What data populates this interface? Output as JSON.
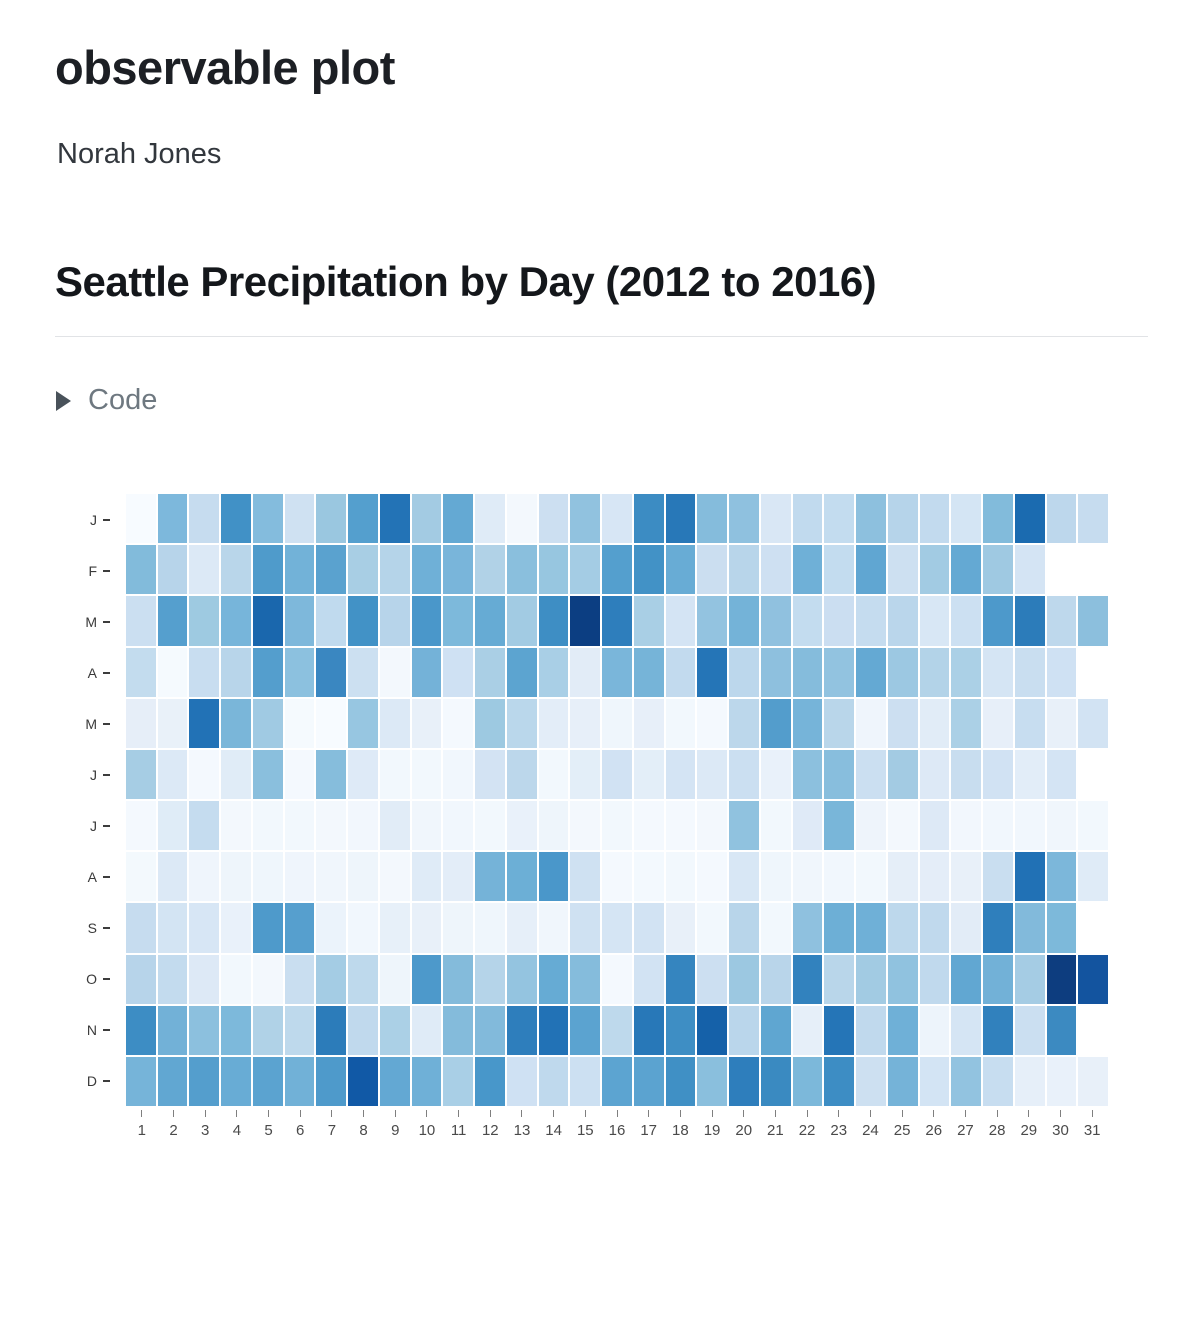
{
  "page": {
    "title": "observable plot",
    "author": "Norah Jones"
  },
  "section": {
    "heading": "Seattle Precipitation by Day (2012 to 2016)"
  },
  "code_toggle": {
    "label": "Code",
    "icon": "triangle-right"
  },
  "chart_data": {
    "type": "heatmap",
    "title": "Seattle Precipitation by Day (2012 to 2016)",
    "x_ticks": [
      1,
      2,
      3,
      4,
      5,
      6,
      7,
      8,
      9,
      10,
      11,
      12,
      13,
      14,
      15,
      16,
      17,
      18,
      19,
      20,
      21,
      22,
      23,
      24,
      25,
      26,
      27,
      28,
      29,
      30,
      31
    ],
    "y_ticks": [
      "J",
      "F",
      "M",
      "A",
      "M",
      "J",
      "J",
      "A",
      "S",
      "O",
      "N",
      "D"
    ],
    "legend_position": "none",
    "grid": false,
    "palette": "Blues sequential (near-white = low, dark navy = high)",
    "rows": [
      {
        "month": "J",
        "cells": [
          "#f7fbff",
          "#7db8dc",
          "#c6dcef",
          "#4191c6",
          "#84bcdd",
          "#cfe1f2",
          "#9ac7e0",
          "#549fce",
          "#2373b6",
          "#a3cbe3",
          "#64a9d3",
          "#dfebf7",
          "#f3f8fd",
          "#ccdff1",
          "#91c2df",
          "#d7e6f5",
          "#3c8cc3",
          "#2878b8",
          "#85bcdc",
          "#8fc1df",
          "#d9e7f5",
          "#c1daee",
          "#c3dcef",
          "#8dc0de",
          "#b6d4ea",
          "#c2daee",
          "#d4e5f4",
          "#82bbdb",
          "#1b6bb0",
          "#bdd7ec",
          "#c6dcef"
        ]
      },
      {
        "month": "F",
        "cells": [
          "#82bbdb",
          "#b7d4ea",
          "#dce9f6",
          "#b9d6ea",
          "#4f9bcb",
          "#72b2d8",
          "#5aa2cf",
          "#a8cee4",
          "#b5d4e9",
          "#6fb0d7",
          "#79b5da",
          "#b1d2e7",
          "#8abfdd",
          "#97c6e0",
          "#a4cce4",
          "#549fce",
          "#4292c6",
          "#68acd5",
          "#cbdef0",
          "#b8d5ea",
          "#cee0f2",
          "#6fb0d7",
          "#c3dcef",
          "#60a6d2",
          "#cde0f1",
          "#a2cbe3",
          "#64a9d3",
          "#9fc9e2",
          "#d4e4f4",
          null,
          null
        ]
      },
      {
        "month": "M",
        "cells": [
          "#cbdff1",
          "#559fce",
          "#9ecae1",
          "#77b5da",
          "#1a67ad",
          "#7eb8db",
          "#c0daee",
          "#4292c6",
          "#b7d4ea",
          "#4a97ca",
          "#7db9db",
          "#66abd4",
          "#a2cbe3",
          "#3e8ec4",
          "#0c3e82",
          "#2e7ebc",
          "#a9cfe5",
          "#d4e4f4",
          "#93c3e0",
          "#74b3d8",
          "#90c1df",
          "#c3dcef",
          "#cbdef1",
          "#c5dcef",
          "#bad6eb",
          "#d8e7f5",
          "#cce0f2",
          "#4d99cb",
          "#2c7cba",
          "#bed8ec",
          "#8cbfdd"
        ]
      },
      {
        "month": "A",
        "cells": [
          "#c3dcee",
          "#f5fafe",
          "#c8ddf0",
          "#b8d5ea",
          "#549ecd",
          "#8cc1df",
          "#3a87c1",
          "#cce0f1",
          "#f3f8fd",
          "#74b2d8",
          "#cfe1f3",
          "#aacfe5",
          "#5ca4d0",
          "#a9cfe6",
          "#e2ecf7",
          "#7ab6da",
          "#76b4d8",
          "#c2daee",
          "#2575b7",
          "#bcd7ec",
          "#8ec0de",
          "#85bcdc",
          "#92c3e0",
          "#64a9d3",
          "#9cc8e2",
          "#b3d3e8",
          "#abd0e6",
          "#d5e5f4",
          "#c9def0",
          "#cfe1f3",
          null
        ]
      },
      {
        "month": "M",
        "cells": [
          "#e6eef8",
          "#e9f1f9",
          "#2272b6",
          "#7ab6d9",
          "#a0cae3",
          "#f5fafe",
          "#f7fbff",
          "#97c6e1",
          "#dce9f6",
          "#e8f0f9",
          "#f4f9fe",
          "#9dc9e1",
          "#bad7eb",
          "#e3edf8",
          "#e7eff9",
          "#eff6fc",
          "#e7eff9",
          "#f2f8fd",
          "#f4f9fe",
          "#bcd7eb",
          "#539dcc",
          "#76b4d9",
          "#b9d6ea",
          "#eff5fc",
          "#ccdff1",
          "#e1ecf7",
          "#abd0e6",
          "#e7eff9",
          "#c7ddf0",
          "#e8f0f9",
          "#d2e3f3"
        ]
      },
      {
        "month": "J",
        "cells": [
          "#a6cde4",
          "#dce9f6",
          "#f4f9fe",
          "#e0ecf7",
          "#8abfdd",
          "#f4f9fe",
          "#86bddc",
          "#deeaf7",
          "#f2f8fd",
          "#f2f8fd",
          "#f1f7fd",
          "#d3e3f3",
          "#bcd7eb",
          "#f2f8fd",
          "#e3eef8",
          "#d1e2f3",
          "#e3eef8",
          "#d4e4f4",
          "#dce9f6",
          "#cbdff1",
          "#e9f1fa",
          "#8cc0de",
          "#88bedd",
          "#cbdff1",
          "#a3cbe3",
          "#dde9f6",
          "#c8ddef",
          "#d1e2f3",
          "#e2edf8",
          "#d4e4f4",
          null
        ]
      },
      {
        "month": "J",
        "cells": [
          "#f4f9fe",
          "#dfecf7",
          "#c5dcef",
          "#f3f8fd",
          "#f2f8fd",
          "#f2f8fd",
          "#f3f8fd",
          "#f2f7fd",
          "#e1ecf7",
          "#f0f6fc",
          "#f1f7fd",
          "#f2f8fd",
          "#e9f1fa",
          "#eef5fb",
          "#f3f8fd",
          "#f2f8fd",
          "#f4f9fe",
          "#f4f9fe",
          "#f3f8fd",
          "#90c2df",
          "#f2f8fd",
          "#dfeaf7",
          "#79b6d9",
          "#eef4fb",
          "#f3f8fd",
          "#dde9f6",
          "#f2f7fd",
          "#f1f7fd",
          "#f1f7fd",
          "#f0f6fc",
          "#f2f8fd"
        ]
      },
      {
        "month": "A",
        "cells": [
          "#f3f9fd",
          "#dce9f6",
          "#eff5fc",
          "#eef5fb",
          "#eff6fc",
          "#eff5fc",
          "#f0f6fc",
          "#eef5fb",
          "#f3f8fd",
          "#dfebf7",
          "#e3edf8",
          "#75b3d8",
          "#6cafd6",
          "#4a97ca",
          "#cfe1f2",
          "#f4f9fe",
          "#f3f9fe",
          "#f2f8fd",
          "#f4f9fe",
          "#d8e7f5",
          "#eff6fc",
          "#f0f6fc",
          "#f1f7fd",
          "#f2f8fd",
          "#e5eef8",
          "#e4edf8",
          "#e8f0f9",
          "#c9def0",
          "#2171b5",
          "#7cb7da",
          "#dfebf7"
        ]
      },
      {
        "month": "S",
        "cells": [
          "#c6dcef",
          "#d3e4f3",
          "#d7e6f5",
          "#e9f1fa",
          "#4e9acb",
          "#569fce",
          "#ebf3fb",
          "#f1f7fd",
          "#e7f0f9",
          "#e8f0f9",
          "#eef5fb",
          "#eff6fc",
          "#e6eff9",
          "#f0f6fc",
          "#cfe1f2",
          "#d5e5f4",
          "#d2e3f3",
          "#e8f0f9",
          "#f2f8fd",
          "#b8d5ea",
          "#f2f8fd",
          "#8fc1df",
          "#6dafd6",
          "#6fb0d7",
          "#bdd8ec",
          "#c0d9ed",
          "#e2ecf7",
          "#2f7fbc",
          "#82badb",
          "#7db9da",
          null
        ]
      },
      {
        "month": "O",
        "cells": [
          "#b7d4ea",
          "#c3dbee",
          "#dde9f6",
          "#f2f8fd",
          "#f3f8fd",
          "#c9def0",
          "#a4cce4",
          "#bed9ec",
          "#eef5fb",
          "#4d99cb",
          "#84bbdb",
          "#b5d4e9",
          "#94c4e0",
          "#66abd4",
          "#85bcdc",
          "#f4f9fe",
          "#d2e3f3",
          "#3585bf",
          "#ccdff1",
          "#9cc8e1",
          "#b9d5ea",
          "#3282be",
          "#b9d6ea",
          "#a2cbe3",
          "#90c2df",
          "#c0d9ed",
          "#61a7d2",
          "#72b1d7",
          "#a5cce4",
          "#0d3d7f",
          "#13549f"
        ]
      },
      {
        "month": "N",
        "cells": [
          "#3d8dc4",
          "#72b1d7",
          "#8cc0de",
          "#7db9db",
          "#b0d2e7",
          "#bed9ec",
          "#2c7cba",
          "#c0d9ed",
          "#abd0e6",
          "#dfebf7",
          "#84bbdb",
          "#82badb",
          "#2e7ebc",
          "#2272b6",
          "#5ba3d0",
          "#bed9ec",
          "#2878b8",
          "#3e8ec4",
          "#1561a9",
          "#bad6eb",
          "#5fa6d1",
          "#e6eff9",
          "#2575b7",
          "#c0d9ed",
          "#6fb0d7",
          "#edf4fb",
          "#d5e5f4",
          "#3181bd",
          "#cbdff1",
          "#3c8ac1",
          null
        ]
      },
      {
        "month": "D",
        "cells": [
          "#76b4d9",
          "#61a7d2",
          "#549ecd",
          "#68acd5",
          "#5ba3d0",
          "#71b1d7",
          "#4e9acb",
          "#1159a6",
          "#63a8d3",
          "#6fb0d7",
          "#a9cfe6",
          "#4897ca",
          "#cfe1f3",
          "#bfd9ed",
          "#cce0f2",
          "#5ca4d1",
          "#5ba3d0",
          "#4090c5",
          "#8abfdd",
          "#2e7ebc",
          "#3a8ac1",
          "#7cb8da",
          "#3d8dc4",
          "#cde0f1",
          "#75b3d8",
          "#d3e4f4",
          "#92c3e0",
          "#c7ddf0",
          "#e6eff9",
          "#e9f1fa",
          "#e8f0f9"
        ]
      }
    ]
  }
}
